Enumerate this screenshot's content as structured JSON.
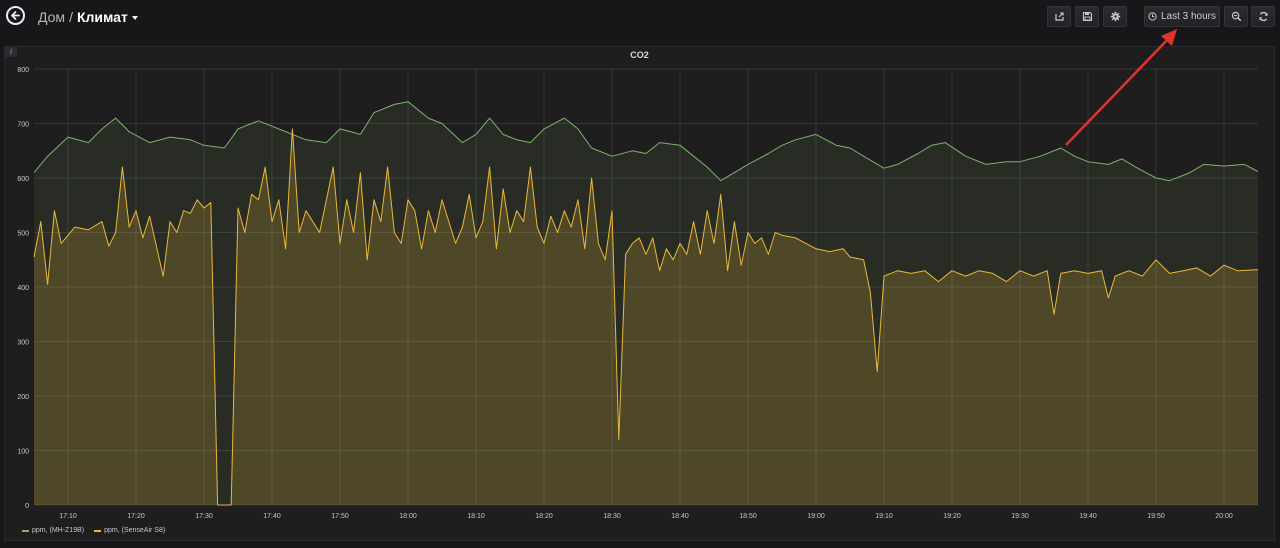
{
  "breadcrumb": {
    "home": "Дом",
    "separator": "/",
    "dashboard": "Климат"
  },
  "toolbar": {
    "buttons": [
      {
        "name": "share-button",
        "icon": "share-icon"
      },
      {
        "name": "save-button",
        "icon": "save-icon"
      },
      {
        "name": "settings-button",
        "icon": "gear-icon"
      }
    ],
    "time_range_label": "Last 3 hours",
    "zoom_icon": "zoom-out-icon",
    "refresh_icon": "refresh-icon"
  },
  "panel": {
    "info_icon": "i",
    "title": "CO2"
  },
  "colors": {
    "green": "#7eb26d",
    "yellow": "#eab839",
    "background": "#161719",
    "panel": "#1f1d1d"
  },
  "chart_data": {
    "type": "area",
    "title": "CO2",
    "ylim": [
      0,
      800
    ],
    "yticks": [
      0,
      100,
      200,
      300,
      400,
      500,
      600,
      700,
      800
    ],
    "x_labels": [
      "17:10",
      "17:20",
      "17:30",
      "17:40",
      "17:50",
      "18:00",
      "18:10",
      "18:20",
      "18:30",
      "18:40",
      "18:50",
      "19:00",
      "19:10",
      "19:20",
      "19:30",
      "19:40",
      "19:50",
      "20:00"
    ],
    "x_range": [
      "17:05",
      "20:05"
    ],
    "grid": true,
    "legend_position": "bottom-left",
    "series": [
      {
        "name": "ppm, (MH-Z19B)",
        "color": "#7eb26d",
        "points": [
          [
            "17:05",
            610
          ],
          [
            "17:07",
            640
          ],
          [
            "17:10",
            675
          ],
          [
            "17:13",
            665
          ],
          [
            "17:15",
            690
          ],
          [
            "17:17",
            710
          ],
          [
            "17:19",
            685
          ],
          [
            "17:22",
            665
          ],
          [
            "17:25",
            675
          ],
          [
            "17:28",
            670
          ],
          [
            "17:30",
            660
          ],
          [
            "17:33",
            655
          ],
          [
            "17:35",
            690
          ],
          [
            "17:38",
            705
          ],
          [
            "17:40",
            695
          ],
          [
            "17:43",
            680
          ],
          [
            "17:45",
            670
          ],
          [
            "17:48",
            665
          ],
          [
            "17:50",
            690
          ],
          [
            "17:53",
            680
          ],
          [
            "17:55",
            720
          ],
          [
            "17:58",
            735
          ],
          [
            "18:00",
            740
          ],
          [
            "18:03",
            710
          ],
          [
            "18:05",
            700
          ],
          [
            "18:08",
            665
          ],
          [
            "18:10",
            680
          ],
          [
            "18:12",
            710
          ],
          [
            "18:14",
            680
          ],
          [
            "18:16",
            670
          ],
          [
            "18:18",
            665
          ],
          [
            "18:20",
            690
          ],
          [
            "18:23",
            710
          ],
          [
            "18:25",
            690
          ],
          [
            "18:27",
            655
          ],
          [
            "18:30",
            640
          ],
          [
            "18:33",
            650
          ],
          [
            "18:35",
            645
          ],
          [
            "18:37",
            665
          ],
          [
            "18:40",
            660
          ],
          [
            "18:42",
            640
          ],
          [
            "18:44",
            620
          ],
          [
            "18:46",
            595
          ],
          [
            "18:48",
            610
          ],
          [
            "18:50",
            625
          ],
          [
            "18:53",
            645
          ],
          [
            "18:55",
            660
          ],
          [
            "18:57",
            670
          ],
          [
            "19:00",
            680
          ],
          [
            "19:03",
            660
          ],
          [
            "19:05",
            655
          ],
          [
            "19:07",
            640
          ],
          [
            "19:10",
            618
          ],
          [
            "19:12",
            625
          ],
          [
            "19:15",
            645
          ],
          [
            "19:17",
            660
          ],
          [
            "19:19",
            665
          ],
          [
            "19:22",
            640
          ],
          [
            "19:25",
            625
          ],
          [
            "19:28",
            630
          ],
          [
            "19:30",
            630
          ],
          [
            "19:33",
            640
          ],
          [
            "19:36",
            655
          ],
          [
            "19:38",
            640
          ],
          [
            "19:40",
            630
          ],
          [
            "19:43",
            625
          ],
          [
            "19:45",
            635
          ],
          [
            "19:47",
            620
          ],
          [
            "19:50",
            600
          ],
          [
            "19:52",
            595
          ],
          [
            "19:55",
            610
          ],
          [
            "19:57",
            625
          ],
          [
            "20:00",
            622
          ],
          [
            "20:03",
            625
          ],
          [
            "20:05",
            612
          ]
        ]
      },
      {
        "name": "ppm, (SenseAir S8)",
        "color": "#eab839",
        "points": [
          [
            "17:05",
            455
          ],
          [
            "17:06",
            520
          ],
          [
            "17:07",
            405
          ],
          [
            "17:08",
            540
          ],
          [
            "17:09",
            480
          ],
          [
            "17:11",
            510
          ],
          [
            "17:13",
            505
          ],
          [
            "17:15",
            520
          ],
          [
            "17:16",
            475
          ],
          [
            "17:17",
            500
          ],
          [
            "17:18",
            620
          ],
          [
            "17:19",
            510
          ],
          [
            "17:20",
            540
          ],
          [
            "17:21",
            490
          ],
          [
            "17:22",
            530
          ],
          [
            "17:24",
            420
          ],
          [
            "17:25",
            520
          ],
          [
            "17:26",
            500
          ],
          [
            "17:27",
            540
          ],
          [
            "17:28",
            535
          ],
          [
            "17:29",
            560
          ],
          [
            "17:30",
            545
          ],
          [
            "17:31",
            555
          ],
          [
            "17:32",
            0
          ],
          [
            "17:33",
            0
          ],
          [
            "17:34",
            0
          ],
          [
            "17:35",
            545
          ],
          [
            "17:36",
            500
          ],
          [
            "17:37",
            570
          ],
          [
            "17:38",
            560
          ],
          [
            "17:39",
            620
          ],
          [
            "17:40",
            520
          ],
          [
            "17:41",
            560
          ],
          [
            "17:42",
            470
          ],
          [
            "17:43",
            690
          ],
          [
            "17:44",
            500
          ],
          [
            "17:45",
            540
          ],
          [
            "17:46",
            520
          ],
          [
            "17:47",
            500
          ],
          [
            "17:48",
            560
          ],
          [
            "17:49",
            620
          ],
          [
            "17:50",
            480
          ],
          [
            "17:51",
            560
          ],
          [
            "17:52",
            500
          ],
          [
            "17:53",
            610
          ],
          [
            "17:54",
            450
          ],
          [
            "17:55",
            560
          ],
          [
            "17:56",
            520
          ],
          [
            "17:57",
            620
          ],
          [
            "17:58",
            500
          ],
          [
            "17:59",
            480
          ],
          [
            "18:00",
            560
          ],
          [
            "18:01",
            540
          ],
          [
            "18:02",
            470
          ],
          [
            "18:03",
            540
          ],
          [
            "18:04",
            500
          ],
          [
            "18:05",
            560
          ],
          [
            "18:06",
            520
          ],
          [
            "18:07",
            480
          ],
          [
            "18:08",
            510
          ],
          [
            "18:09",
            570
          ],
          [
            "18:10",
            490
          ],
          [
            "18:11",
            520
          ],
          [
            "18:12",
            620
          ],
          [
            "18:13",
            470
          ],
          [
            "18:14",
            580
          ],
          [
            "18:15",
            500
          ],
          [
            "18:16",
            540
          ],
          [
            "18:17",
            520
          ],
          [
            "18:18",
            620
          ],
          [
            "18:19",
            510
          ],
          [
            "18:20",
            480
          ],
          [
            "18:21",
            530
          ],
          [
            "18:22",
            500
          ],
          [
            "18:23",
            540
          ],
          [
            "18:24",
            510
          ],
          [
            "18:25",
            560
          ],
          [
            "18:26",
            470
          ],
          [
            "18:27",
            600
          ],
          [
            "18:28",
            480
          ],
          [
            "18:29",
            450
          ],
          [
            "18:30",
            540
          ],
          [
            "18:31",
            120
          ],
          [
            "18:32",
            460
          ],
          [
            "18:33",
            480
          ],
          [
            "18:34",
            490
          ],
          [
            "18:35",
            460
          ],
          [
            "18:36",
            490
          ],
          [
            "18:37",
            430
          ],
          [
            "18:38",
            470
          ],
          [
            "18:39",
            450
          ],
          [
            "18:40",
            480
          ],
          [
            "18:41",
            460
          ],
          [
            "18:42",
            520
          ],
          [
            "18:43",
            460
          ],
          [
            "18:44",
            540
          ],
          [
            "18:45",
            480
          ],
          [
            "18:46",
            570
          ],
          [
            "18:47",
            430
          ],
          [
            "18:48",
            520
          ],
          [
            "18:49",
            440
          ],
          [
            "18:50",
            500
          ],
          [
            "18:51",
            480
          ],
          [
            "18:52",
            490
          ],
          [
            "18:53",
            460
          ],
          [
            "18:54",
            500
          ],
          [
            "18:55",
            495
          ],
          [
            "18:57",
            490
          ],
          [
            "19:00",
            470
          ],
          [
            "19:02",
            465
          ],
          [
            "19:04",
            470
          ],
          [
            "19:05",
            455
          ],
          [
            "19:07",
            450
          ],
          [
            "19:08",
            390
          ],
          [
            "19:09",
            245
          ],
          [
            "19:10",
            420
          ],
          [
            "19:12",
            430
          ],
          [
            "19:14",
            425
          ],
          [
            "19:16",
            430
          ],
          [
            "19:18",
            410
          ],
          [
            "19:20",
            430
          ],
          [
            "19:22",
            420
          ],
          [
            "19:24",
            430
          ],
          [
            "19:26",
            425
          ],
          [
            "19:28",
            410
          ],
          [
            "19:30",
            430
          ],
          [
            "19:32",
            420
          ],
          [
            "19:34",
            430
          ],
          [
            "19:35",
            350
          ],
          [
            "19:36",
            425
          ],
          [
            "19:38",
            430
          ],
          [
            "19:40",
            425
          ],
          [
            "19:42",
            430
          ],
          [
            "19:43",
            380
          ],
          [
            "19:44",
            420
          ],
          [
            "19:46",
            430
          ],
          [
            "19:48",
            420
          ],
          [
            "19:50",
            450
          ],
          [
            "19:52",
            425
          ],
          [
            "19:54",
            430
          ],
          [
            "19:56",
            435
          ],
          [
            "19:58",
            420
          ],
          [
            "20:00",
            440
          ],
          [
            "20:02",
            430
          ],
          [
            "20:05",
            432
          ]
        ]
      }
    ]
  }
}
